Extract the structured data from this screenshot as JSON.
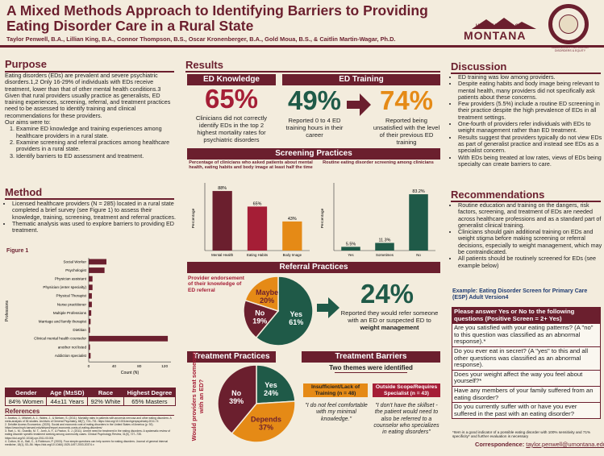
{
  "header": {
    "title": "A Mixed Methods Approach to Identifying Barriers to Providing Eating Disorder Care in a Rural State",
    "authors": "Taylor Penwell, B.A., Lillian King, B.A., Connor Thompson, B.S., Oscar Kronenberger, B.A., Gold Moua, B.S., & Caitlin Martin-Wagar, Ph.D.",
    "univ": "UNIVERSITY OF",
    "montana": "MONTANA",
    "lab": "LABORATORY FOR EATING DISORDERS & EQUITY"
  },
  "purpose": {
    "heading": "Purpose",
    "p1": "Eating disorders (EDs) are prevalent and severe psychiatric disorders.1,2 Only 16-29% of individuals with EDs receive treatment, lower than that of other mental health conditions.3 Given that rural providers usually practice as generalists, ED training experiences, screening, referral, and treatment practices need to be assessed to identify training and clinical recommendations for these providers.",
    "aims_intro": "Our aims were to:",
    "aims": [
      "Examine ED knowledge and training experiences among healthcare providers in a rural state.",
      "Examine screening and referral practices  among healthcare providers in a rural state.",
      "Identify barriers to ED assessment and treatment."
    ]
  },
  "method": {
    "heading": "Method",
    "bullets": [
      "Licensed healthcare providers (N = 285) located in a rural state completed a brief survey (see Figure 1) to assess their knowledge, training, screening, treatment  and referral practices.",
      "Thematic analysis was used to explore barriers to providing ED treatment."
    ],
    "fig_label": "Figure 1"
  },
  "fig1": {
    "type": "bar",
    "orientation": "horizontal",
    "categories": [
      "Social Worker",
      "Psychologist",
      "Physician assistant",
      "Physician (enter specialty)",
      "Physical Therapist",
      "Nurse practitioner",
      "Multiple Professions",
      "Marriage and family therapist",
      "Dietitian",
      "Clinical mental health counselor",
      "another not listed",
      "Addiction specialist"
    ],
    "values": [
      28,
      25,
      6,
      6,
      5,
      5,
      4,
      3,
      2,
      125,
      2,
      3
    ],
    "xlabel": "Count (N)",
    "ylabel": "Professions",
    "xticks": [
      "0",
      "40",
      "80",
      "120"
    ],
    "xlim": [
      0,
      130
    ]
  },
  "demo": {
    "headers": [
      "Gender",
      "Age (M±SD)",
      "Race",
      "Highest Degree"
    ],
    "values": [
      "84% Women",
      "44±11 Years",
      "92% White",
      "65% Masters"
    ]
  },
  "references": {
    "heading": "References",
    "items": [
      "1. Arcelus, J., Mitchell, A. J., Wales, J., & Nielsen, S. (2011). Mortality rates in patients with anorexia nervosa and other eating disorders: A meta-analysis of 36 studies. Archives of General Psychiatry, 68(7), 724–731. https://doi.org/10.1001/archgenpsychiatry.2011.74",
      "2. Deloitte Access Economics. (2020). Social and economic cost of eating disorders in the United States of America (p. 92). https://www.hsph.harvard.edu/striped/report-economic-costs-of-eating-disorders/",
      "3. Hart, L. M., Granillo, M. T., Jorm, A. F., & Paxton, S. J. (2011). Unmet need for treatment in the eating disorders: A systematic review of eating disorder specific treatment seeking among community cases. Clinical Psychology Review, 31(5), 727–735. https://doi.org/10.1016/j.cpr.2011.03.004",
      "4. Cotton, M. A., Ball, C., & Robinson, P. (2003). Four simple questions can help screen for eating disorders. Journal of general internal medicine, 18(1), 53–56. https://doi.org/10.1046/j.1525-1497.2003.20374.x"
    ]
  },
  "results": {
    "heading": "Results",
    "edk": {
      "band": "ED Knowledge",
      "stat": "65%",
      "text": "Clinicians did not correctly identify EDs in the top 2 highest mortality rates for psychiatric disorders"
    },
    "edt": {
      "band": "ED Training",
      "stat1": "49%",
      "text1": "Reported 0 to 4 ED training hours in their career",
      "stat2": "74%",
      "text2": "Reported being unsatisfied with the level of their previous ED training"
    },
    "screen": {
      "band": "Screening Practices"
    },
    "referral": {
      "band": "Referral Practices",
      "pie_title": "Provider endorsement of their knowledge of ED referral",
      "stat": "24%",
      "text_pre": "Reported they would refer someone with an ED or suspected ED to",
      "text_bold": "weight management"
    },
    "treat": {
      "band": "Treatment Practices",
      "ylabel": "Would providers treat someone with an ED?"
    },
    "barriers": {
      "band": "Treatment Barriers",
      "sub": "Two themes were identified",
      "t1": "Insufficient/Lack of Training (n = 48)",
      "t2": "Outside Scope/Requires Specialist (n = 43)",
      "q1": "\"I do not feel comfortable with my minimal knowledge.\"",
      "q2": "\"I don't have the skillset - the patient would need to also be referred to a counselor who specializes in eating disorders\""
    }
  },
  "chart_data": [
    {
      "type": "bar",
      "title": "Percentage of clinicians who asked patients about mental health, eating habits and body image at least half the time",
      "categories": [
        "Mental Health",
        "Eating Habits",
        "Body Image"
      ],
      "values": [
        88,
        65,
        43
      ],
      "labels": [
        "88%",
        "65%",
        "43%"
      ],
      "ylabel": "Percentage",
      "ylim": [
        0,
        100
      ]
    },
    {
      "type": "bar",
      "title": "Routine eating disorder screening among clinicians",
      "categories": [
        "Yes",
        "Sometimes",
        "No"
      ],
      "values": [
        5.5,
        11.3,
        83.2
      ],
      "labels": [
        "5.5%",
        "11.3%",
        "83.2%"
      ],
      "ylabel": "Percentage",
      "ylim": [
        0,
        100
      ]
    },
    {
      "type": "pie",
      "title": "Provider endorsement of their knowledge of ED referral",
      "labels": [
        "Yes",
        "No",
        "Maybe"
      ],
      "values": [
        61,
        19,
        20
      ],
      "display": [
        "61%",
        "19%",
        "20%"
      ]
    },
    {
      "type": "pie",
      "title": "Would providers treat someone with an ED?",
      "labels": [
        "Yes",
        "Depends",
        "No"
      ],
      "values": [
        24,
        37,
        39
      ],
      "display": [
        "24%",
        "37%",
        "39%"
      ]
    }
  ],
  "discussion": {
    "heading": "Discussion",
    "bullets": [
      "ED training was low among providers.",
      "Despite eating habits and body image being relevant to mental health, many providers did not specifically ask patients about these concerns.",
      "Few providers (5.5%) include a routine ED screening in their practice despite the high prevalence of EDs in all treatment settings.",
      "One-fourth of providers refer individuals with EDs to weight management rather than ED treatment.",
      "Results suggest that providers typically do not view EDs as part of generalist practice and instead see EDs as a specialist concern.",
      "With EDs being treated at low rates, views of EDs being specialty can create barriers to care."
    ]
  },
  "recs": {
    "heading": "Recommendations",
    "bullets": [
      "Routine education and training on the dangers, risk factors, screening, and treatment of EDs are needed across healthcare professions and as a standard part of generalist clinical training.",
      "Clinicians should gain additional training on EDs and weight stigma before making screening or referral decisions, especially to weight management, which may be contraindicated.",
      "All patients should be routinely screened for EDs (see example below)"
    ]
  },
  "esp": {
    "title": "Example: Eating Disorder Screen for Primary Care (ESP) Adult Version4",
    "header": "Please answer Yes or No to the following questions (Positive Screen = 2+ Yes)",
    "rows": [
      "Are you satisfied with your eating patterns? (A \"no\" to this question was classified as an abnormal response).*",
      "Do you ever eat in secret? (A \"yes\" to this and all other questions was classified as an abnormal response).",
      "Does your weight affect the way you feel about yourself?*",
      "Have any members of your family suffered from an eating disorder?",
      "Do you currently suffer with or have you ever suffered in the past with an eating disorder?"
    ],
    "note": "*Item is a good indicator of a possible eating disorder with 100% sensitivity and 71% specificity* and further evaluation is necessary",
    "corr_label": "Correspondence:",
    "corr_email": "taylor.penwell@umontana.edu"
  },
  "colors": {
    "maroon": "#6b1f2e",
    "red": "#a51e36",
    "teal": "#1f5a48",
    "orange": "#e58a16",
    "cream": "#f3ecdd"
  }
}
